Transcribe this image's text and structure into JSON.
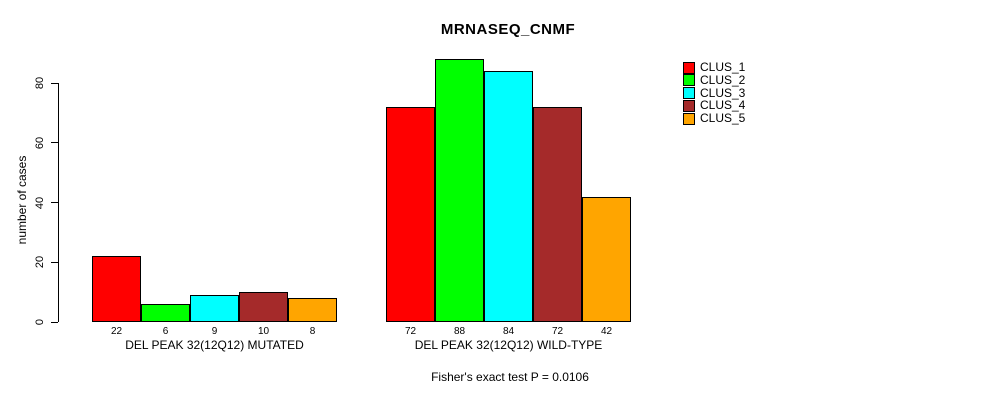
{
  "chart_data": {
    "type": "bar",
    "title": "MRNASEQ_CNMF",
    "ylabel": "number of cases",
    "xlabel": "",
    "footer": "Fisher's exact test P = 0.0106",
    "groups": [
      {
        "label": "DEL PEAK 32(12Q12) MUTATED",
        "values": [
          22,
          6,
          9,
          10,
          8
        ]
      },
      {
        "label": "DEL PEAK 32(12Q12) WILD-TYPE",
        "values": [
          72,
          88,
          84,
          72,
          42
        ]
      }
    ],
    "series": [
      {
        "name": "CLUS_1",
        "color": "#FF0000"
      },
      {
        "name": "CLUS_2",
        "color": "#00FF00"
      },
      {
        "name": "CLUS_3",
        "color": "#00FFFF"
      },
      {
        "name": "CLUS_4",
        "color": "#A52A2A"
      },
      {
        "name": "CLUS_5",
        "color": "#FFA500"
      }
    ],
    "yticks": [
      0,
      20,
      40,
      60,
      80
    ],
    "ylim": [
      0,
      88
    ],
    "grid": false,
    "legend_position": "right",
    "bar_border_color": "#000000"
  }
}
